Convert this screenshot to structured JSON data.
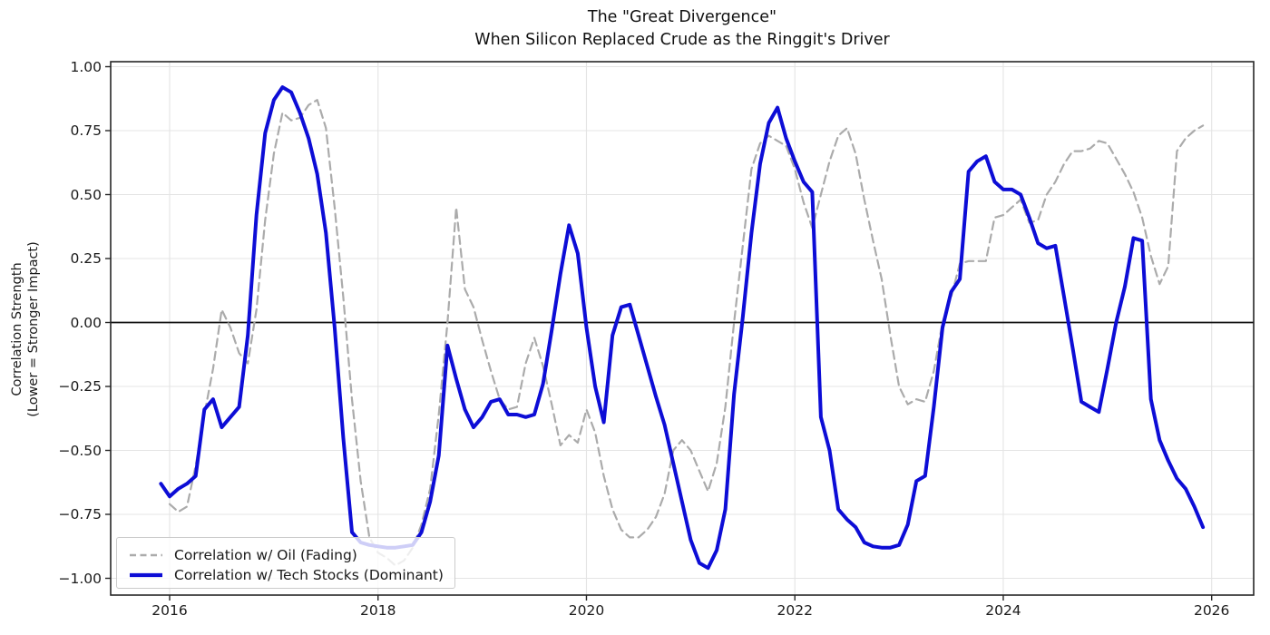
{
  "chart_data": {
    "type": "line",
    "title_line1": "The \"Great Divergence\"",
    "title_line2": "When Silicon Replaced Crude as the Ringgit's Driver",
    "ylabel_line1": "Correlation Strength",
    "ylabel_line2": "(Lower = Stronger Impact)",
    "x_tick_years": [
      2016,
      2018,
      2020,
      2022,
      2024,
      2026
    ],
    "x_tick_labels": [
      "2016",
      "2018",
      "2020",
      "2022",
      "2024",
      "2026"
    ],
    "y_tick_values": [
      1.0,
      0.75,
      0.5,
      0.25,
      0.0,
      -0.25,
      -0.5,
      -0.75,
      -1.0
    ],
    "y_tick_labels": [
      "1.00",
      "0.75",
      "0.50",
      "0.25",
      "0.00",
      "−0.25",
      "−0.50",
      "−0.75",
      "−1.00"
    ],
    "ylim": [
      -1.05,
      1.05
    ],
    "grid": true,
    "grid_color": "#e4e4e4",
    "zero_line": true,
    "zero_line_color": "#111111",
    "axis_color": "#262626",
    "legend_position": "lower left",
    "x_unit": "monthly",
    "series": [
      {
        "name": "Correlation w/ Oil (Fading)",
        "slug": "oil",
        "color": "#ababab",
        "style": "dashed",
        "line_width": 2.2,
        "start_year": 2016,
        "start_month": 1,
        "values": [
          -0.71,
          -0.74,
          -0.72,
          -0.56,
          -0.36,
          -0.18,
          0.05,
          -0.02,
          -0.12,
          -0.16,
          0.05,
          0.4,
          0.66,
          0.82,
          0.79,
          0.8,
          0.85,
          0.87,
          0.76,
          0.45,
          0.1,
          -0.3,
          -0.62,
          -0.84,
          -0.9,
          -0.92,
          -0.95,
          -0.93,
          -0.88,
          -0.79,
          -0.65,
          -0.36,
          0.0,
          0.45,
          0.13,
          0.06,
          -0.07,
          -0.19,
          -0.3,
          -0.34,
          -0.33,
          -0.16,
          -0.06,
          -0.17,
          -0.32,
          -0.48,
          -0.44,
          -0.47,
          -0.34,
          -0.43,
          -0.6,
          -0.73,
          -0.81,
          -0.84,
          -0.84,
          -0.81,
          -0.76,
          -0.67,
          -0.5,
          -0.46,
          -0.5,
          -0.58,
          -0.66,
          -0.55,
          -0.33,
          0.0,
          0.3,
          0.6,
          0.7,
          0.73,
          0.71,
          0.69,
          0.6,
          0.47,
          0.37,
          0.5,
          0.63,
          0.73,
          0.76,
          0.66,
          0.48,
          0.32,
          0.17,
          -0.05,
          -0.25,
          -0.32,
          -0.3,
          -0.31,
          -0.19,
          0.0,
          0.1,
          0.23,
          0.24,
          0.24,
          0.24,
          0.41,
          0.42,
          0.45,
          0.48,
          0.39,
          0.4,
          0.5,
          0.55,
          0.62,
          0.67,
          0.67,
          0.68,
          0.71,
          0.7,
          0.64,
          0.58,
          0.51,
          0.41,
          0.26,
          0.15,
          0.22,
          0.67,
          0.72,
          0.75,
          0.77
        ]
      },
      {
        "name": "Correlation w/ Tech Stocks (Dominant)",
        "slug": "tech",
        "color": "#0d0dd6",
        "style": "solid",
        "line_width": 4,
        "start_year": 2015,
        "start_month": 12,
        "values": [
          -0.63,
          -0.68,
          -0.65,
          -0.63,
          -0.6,
          -0.34,
          -0.3,
          -0.41,
          -0.37,
          -0.33,
          -0.05,
          0.42,
          0.74,
          0.87,
          0.92,
          0.9,
          0.82,
          0.72,
          0.58,
          0.35,
          -0.02,
          -0.45,
          -0.82,
          -0.86,
          -0.87,
          -0.875,
          -0.88,
          -0.88,
          -0.875,
          -0.87,
          -0.82,
          -0.7,
          -0.52,
          -0.09,
          -0.22,
          -0.34,
          -0.41,
          -0.37,
          -0.31,
          -0.3,
          -0.36,
          -0.36,
          -0.37,
          -0.36,
          -0.24,
          -0.03,
          0.19,
          0.38,
          0.27,
          -0.02,
          -0.25,
          -0.39,
          -0.05,
          0.06,
          0.07,
          -0.05,
          -0.17,
          -0.29,
          -0.4,
          -0.55,
          -0.7,
          -0.85,
          -0.94,
          -0.96,
          -0.89,
          -0.73,
          -0.28,
          0.02,
          0.35,
          0.62,
          0.78,
          0.84,
          0.72,
          0.63,
          0.55,
          0.51,
          -0.37,
          -0.5,
          -0.73,
          -0.77,
          -0.8,
          -0.86,
          -0.875,
          -0.88,
          -0.88,
          -0.87,
          -0.79,
          -0.62,
          -0.6,
          -0.33,
          -0.02,
          0.12,
          0.17,
          0.59,
          0.63,
          0.65,
          0.55,
          0.52,
          0.52,
          0.5,
          0.41,
          0.31,
          0.29,
          0.3,
          0.1,
          -0.1,
          -0.31,
          -0.33,
          -0.35,
          -0.18,
          0.0,
          0.14,
          0.33,
          0.32,
          -0.3,
          -0.46,
          -0.54,
          -0.61,
          -0.65,
          -0.72,
          -0.8
        ]
      }
    ]
  }
}
